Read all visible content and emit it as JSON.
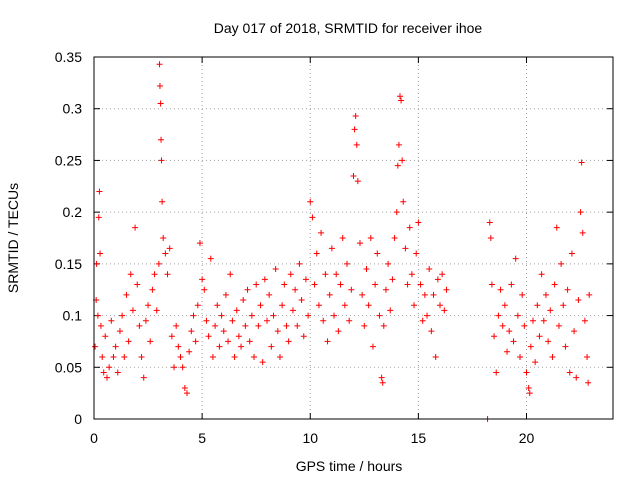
{
  "chart_data": {
    "type": "scatter",
    "title": "Day 017 of 2018, SRMTID for receiver ihoe",
    "xlabel": "GPS time / hours",
    "ylabel": "SRMTID / TECUs",
    "xlim": [
      0,
      24
    ],
    "ylim": [
      0,
      0.35
    ],
    "xticks": [
      0,
      5,
      10,
      15,
      20
    ],
    "xtick_labels": [
      "0",
      "5",
      "10",
      "15",
      "20"
    ],
    "yticks": [
      0,
      0.05,
      0.1,
      0.15,
      0.2,
      0.25,
      0.3,
      0.35
    ],
    "ytick_labels": [
      "0",
      "0.05",
      "0.1",
      "0.15",
      "0.2",
      "0.25",
      "0.3",
      "0.35"
    ],
    "grid": true,
    "marker": "+",
    "color": "#ff0000",
    "series": [
      {
        "name": "SRMTID",
        "points": [
          [
            0.05,
            0.07
          ],
          [
            0.1,
            0.115
          ],
          [
            0.12,
            0.15
          ],
          [
            0.18,
            0.1
          ],
          [
            0.22,
            0.195
          ],
          [
            0.25,
            0.22
          ],
          [
            0.28,
            0.16
          ],
          [
            0.32,
            0.09
          ],
          [
            0.38,
            0.06
          ],
          [
            0.45,
            0.045
          ],
          [
            0.52,
            0.08
          ],
          [
            0.6,
            0.04
          ],
          [
            0.7,
            0.05
          ],
          [
            0.8,
            0.095
          ],
          [
            0.9,
            0.06
          ],
          [
            1.0,
            0.07
          ],
          [
            1.1,
            0.045
          ],
          [
            1.2,
            0.085
          ],
          [
            1.3,
            0.1
          ],
          [
            1.4,
            0.06
          ],
          [
            1.5,
            0.12
          ],
          [
            1.6,
            0.075
          ],
          [
            1.7,
            0.14
          ],
          [
            1.8,
            0.105
          ],
          [
            1.9,
            0.185
          ],
          [
            2.0,
            0.13
          ],
          [
            2.1,
            0.09
          ],
          [
            2.2,
            0.06
          ],
          [
            2.3,
            0.04
          ],
          [
            2.4,
            0.095
          ],
          [
            2.5,
            0.11
          ],
          [
            2.6,
            0.075
          ],
          [
            2.7,
            0.125
          ],
          [
            2.8,
            0.14
          ],
          [
            2.9,
            0.105
          ],
          [
            3.0,
            0.15
          ],
          [
            3.03,
            0.343
          ],
          [
            3.05,
            0.322
          ],
          [
            3.08,
            0.305
          ],
          [
            3.1,
            0.27
          ],
          [
            3.12,
            0.25
          ],
          [
            3.15,
            0.21
          ],
          [
            3.2,
            0.175
          ],
          [
            3.3,
            0.16
          ],
          [
            3.4,
            0.14
          ],
          [
            3.5,
            0.165
          ],
          [
            3.6,
            0.08
          ],
          [
            3.7,
            0.05
          ],
          [
            3.8,
            0.09
          ],
          [
            3.9,
            0.07
          ],
          [
            4.0,
            0.06
          ],
          [
            4.1,
            0.05
          ],
          [
            4.2,
            0.03
          ],
          [
            4.3,
            0.025
          ],
          [
            4.4,
            0.065
          ],
          [
            4.5,
            0.085
          ],
          [
            4.6,
            0.1
          ],
          [
            4.7,
            0.075
          ],
          [
            4.8,
            0.11
          ],
          [
            4.9,
            0.17
          ],
          [
            5.0,
            0.135
          ],
          [
            5.1,
            0.125
          ],
          [
            5.2,
            0.095
          ],
          [
            5.3,
            0.08
          ],
          [
            5.4,
            0.155
          ],
          [
            5.5,
            0.06
          ],
          [
            5.6,
            0.09
          ],
          [
            5.7,
            0.11
          ],
          [
            5.8,
            0.07
          ],
          [
            5.9,
            0.1
          ],
          [
            6.0,
            0.085
          ],
          [
            6.1,
            0.12
          ],
          [
            6.2,
            0.075
          ],
          [
            6.3,
            0.14
          ],
          [
            6.4,
            0.095
          ],
          [
            6.5,
            0.06
          ],
          [
            6.6,
            0.105
          ],
          [
            6.7,
            0.08
          ],
          [
            6.8,
            0.07
          ],
          [
            6.9,
            0.115
          ],
          [
            7.0,
            0.09
          ],
          [
            7.1,
            0.125
          ],
          [
            7.2,
            0.075
          ],
          [
            7.3,
            0.1
          ],
          [
            7.4,
            0.06
          ],
          [
            7.5,
            0.13
          ],
          [
            7.6,
            0.09
          ],
          [
            7.7,
            0.11
          ],
          [
            7.8,
            0.055
          ],
          [
            7.9,
            0.135
          ],
          [
            8.0,
            0.095
          ],
          [
            8.1,
            0.12
          ],
          [
            8.2,
            0.07
          ],
          [
            8.3,
            0.1
          ],
          [
            8.4,
            0.145
          ],
          [
            8.5,
            0.085
          ],
          [
            8.6,
            0.06
          ],
          [
            8.7,
            0.11
          ],
          [
            8.8,
            0.13
          ],
          [
            8.9,
            0.09
          ],
          [
            9.0,
            0.075
          ],
          [
            9.1,
            0.14
          ],
          [
            9.2,
            0.105
          ],
          [
            9.3,
            0.125
          ],
          [
            9.4,
            0.09
          ],
          [
            9.5,
            0.15
          ],
          [
            9.6,
            0.115
          ],
          [
            9.7,
            0.08
          ],
          [
            9.8,
            0.135
          ],
          [
            9.9,
            0.1
          ],
          [
            10.0,
            0.21
          ],
          [
            10.1,
            0.195
          ],
          [
            10.2,
            0.13
          ],
          [
            10.3,
            0.16
          ],
          [
            10.4,
            0.11
          ],
          [
            10.5,
            0.18
          ],
          [
            10.6,
            0.095
          ],
          [
            10.7,
            0.14
          ],
          [
            10.8,
            0.075
          ],
          [
            10.9,
            0.12
          ],
          [
            11.0,
            0.165
          ],
          [
            11.1,
            0.1
          ],
          [
            11.2,
            0.14
          ],
          [
            11.3,
            0.085
          ],
          [
            11.4,
            0.13
          ],
          [
            11.5,
            0.175
          ],
          [
            11.6,
            0.11
          ],
          [
            11.7,
            0.15
          ],
          [
            11.8,
            0.095
          ],
          [
            11.9,
            0.125
          ],
          [
            12.0,
            0.235
          ],
          [
            12.05,
            0.28
          ],
          [
            12.1,
            0.293
          ],
          [
            12.15,
            0.265
          ],
          [
            12.2,
            0.23
          ],
          [
            12.3,
            0.17
          ],
          [
            12.4,
            0.12
          ],
          [
            12.5,
            0.09
          ],
          [
            12.6,
            0.145
          ],
          [
            12.7,
            0.11
          ],
          [
            12.8,
            0.175
          ],
          [
            12.9,
            0.07
          ],
          [
            13.0,
            0.13
          ],
          [
            13.1,
            0.16
          ],
          [
            13.2,
            0.1
          ],
          [
            13.3,
            0.04
          ],
          [
            13.35,
            0.035
          ],
          [
            13.4,
            0.09
          ],
          [
            13.5,
            0.125
          ],
          [
            13.6,
            0.15
          ],
          [
            13.7,
            0.105
          ],
          [
            13.8,
            0.135
          ],
          [
            13.9,
            0.175
          ],
          [
            14.0,
            0.2
          ],
          [
            14.05,
            0.245
          ],
          [
            14.1,
            0.265
          ],
          [
            14.15,
            0.312
          ],
          [
            14.2,
            0.308
          ],
          [
            14.25,
            0.25
          ],
          [
            14.3,
            0.21
          ],
          [
            14.4,
            0.165
          ],
          [
            14.5,
            0.13
          ],
          [
            14.6,
            0.185
          ],
          [
            14.7,
            0.14
          ],
          [
            14.8,
            0.11
          ],
          [
            14.9,
            0.16
          ],
          [
            15.0,
            0.19
          ],
          [
            15.1,
            0.13
          ],
          [
            15.2,
            0.095
          ],
          [
            15.3,
            0.12
          ],
          [
            15.4,
            0.1
          ],
          [
            15.5,
            0.145
          ],
          [
            15.6,
            0.085
          ],
          [
            15.7,
            0.12
          ],
          [
            15.8,
            0.06
          ],
          [
            15.9,
            0.135
          ],
          [
            16.0,
            0.11
          ],
          [
            16.1,
            0.14
          ],
          [
            16.2,
            0.105
          ],
          [
            16.3,
            0.125
          ],
          [
            18.2,
            0.0
          ],
          [
            18.3,
            0.19
          ],
          [
            18.35,
            0.175
          ],
          [
            18.4,
            0.13
          ],
          [
            18.5,
            0.08
          ],
          [
            18.6,
            0.045
          ],
          [
            18.7,
            0.1
          ],
          [
            18.8,
            0.125
          ],
          [
            18.9,
            0.09
          ],
          [
            19.0,
            0.11
          ],
          [
            19.1,
            0.065
          ],
          [
            19.2,
            0.085
          ],
          [
            19.3,
            0.13
          ],
          [
            19.4,
            0.075
          ],
          [
            19.5,
            0.155
          ],
          [
            19.6,
            0.1
          ],
          [
            19.7,
            0.06
          ],
          [
            19.8,
            0.12
          ],
          [
            19.9,
            0.09
          ],
          [
            20.0,
            0.045
          ],
          [
            20.1,
            0.03
          ],
          [
            20.15,
            0.025
          ],
          [
            20.2,
            0.07
          ],
          [
            20.3,
            0.095
          ],
          [
            20.4,
            0.055
          ],
          [
            20.5,
            0.11
          ],
          [
            20.6,
            0.08
          ],
          [
            20.7,
            0.14
          ],
          [
            20.8,
            0.095
          ],
          [
            20.9,
            0.12
          ],
          [
            21.0,
            0.075
          ],
          [
            21.1,
            0.105
          ],
          [
            21.2,
            0.06
          ],
          [
            21.3,
            0.13
          ],
          [
            21.4,
            0.185
          ],
          [
            21.5,
            0.09
          ],
          [
            21.6,
            0.15
          ],
          [
            21.7,
            0.11
          ],
          [
            21.8,
            0.07
          ],
          [
            21.9,
            0.125
          ],
          [
            22.0,
            0.045
          ],
          [
            22.1,
            0.16
          ],
          [
            22.2,
            0.085
          ],
          [
            22.3,
            0.04
          ],
          [
            22.4,
            0.115
          ],
          [
            22.5,
            0.2
          ],
          [
            22.55,
            0.248
          ],
          [
            22.6,
            0.18
          ],
          [
            22.7,
            0.095
          ],
          [
            22.8,
            0.06
          ],
          [
            22.85,
            0.035
          ],
          [
            22.9,
            0.12
          ]
        ]
      }
    ]
  }
}
